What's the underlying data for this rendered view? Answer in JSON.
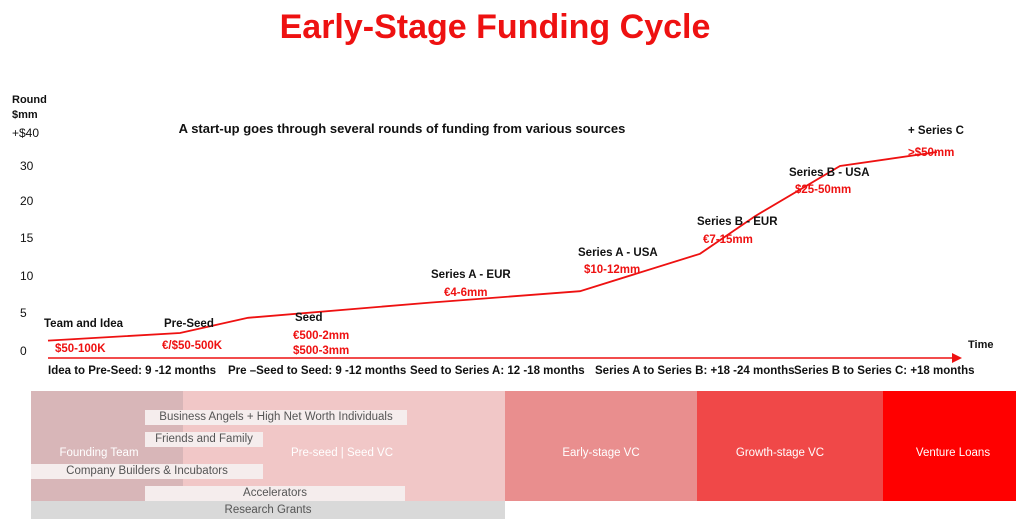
{
  "title": "Early-Stage Funding Cycle",
  "subtitle": "A start-up goes through several rounds of funding from various sources",
  "chart_data": {
    "type": "line",
    "ylabel_lines": [
      "Round",
      "$mm"
    ],
    "xlabel": "Time",
    "y_ticks": [
      "+$40",
      "30",
      "20",
      "15",
      "10",
      "5",
      "0"
    ],
    "ylim": [
      0,
      40
    ],
    "series": [
      {
        "x": [
          0,
          1,
          2,
          3,
          4,
          5,
          6,
          7,
          8
        ],
        "values": [
          1.5,
          2.5,
          4.5,
          6.5,
          8,
          13,
          18,
          30,
          34
        ]
      }
    ],
    "stages": [
      {
        "name": "Team and Idea",
        "amount": "$50-100K"
      },
      {
        "name": "Pre-Seed",
        "amount": "€/$50-500K"
      },
      {
        "name": "Seed",
        "amount": "€500-2mm",
        "amount2": "$500-3mm"
      },
      {
        "name": "Series A - EUR",
        "amount": "€4-6mm"
      },
      {
        "name": "Series A - USA",
        "amount": "$10-12mm"
      },
      {
        "name": "Series B - EUR",
        "amount": "€7-15mm"
      },
      {
        "name": "Series B - USA",
        "amount": "$25-50mm"
      },
      {
        "name": "+ Series C",
        "amount": ">$50mm"
      }
    ],
    "periods": [
      "Idea to Pre-Seed: 9 -12 months",
      "Pre –Seed to Seed: 9 -12 months",
      "Seed to Series A: 12 -18 months",
      "Series A to Series B: +18 -24 months",
      "Series B to Series C: +18 months"
    ]
  },
  "sources": {
    "founding_team": "Founding Team",
    "preseed_vc": "Pre-seed | Seed VC",
    "early_vc": "Early-stage VC",
    "growth_vc": "Growth-stage VC",
    "venture_loans": "Venture Loans",
    "business_angels": "Business Angels + High Net Worth Individuals",
    "friends_family": "Friends and Family",
    "company_builders": "Company Builders & Incubators",
    "accelerators": "Accelerators",
    "research_grants": "Research Grants"
  },
  "colors": {
    "accent": "#ee1111",
    "founding": "#d8b6b8",
    "preseed": "#f1c7c7",
    "early": "#e98e8e",
    "growth": "#f04848",
    "loans": "#ff0000",
    "grants": "#d9d9d9",
    "label_bar": "#f5eded"
  }
}
